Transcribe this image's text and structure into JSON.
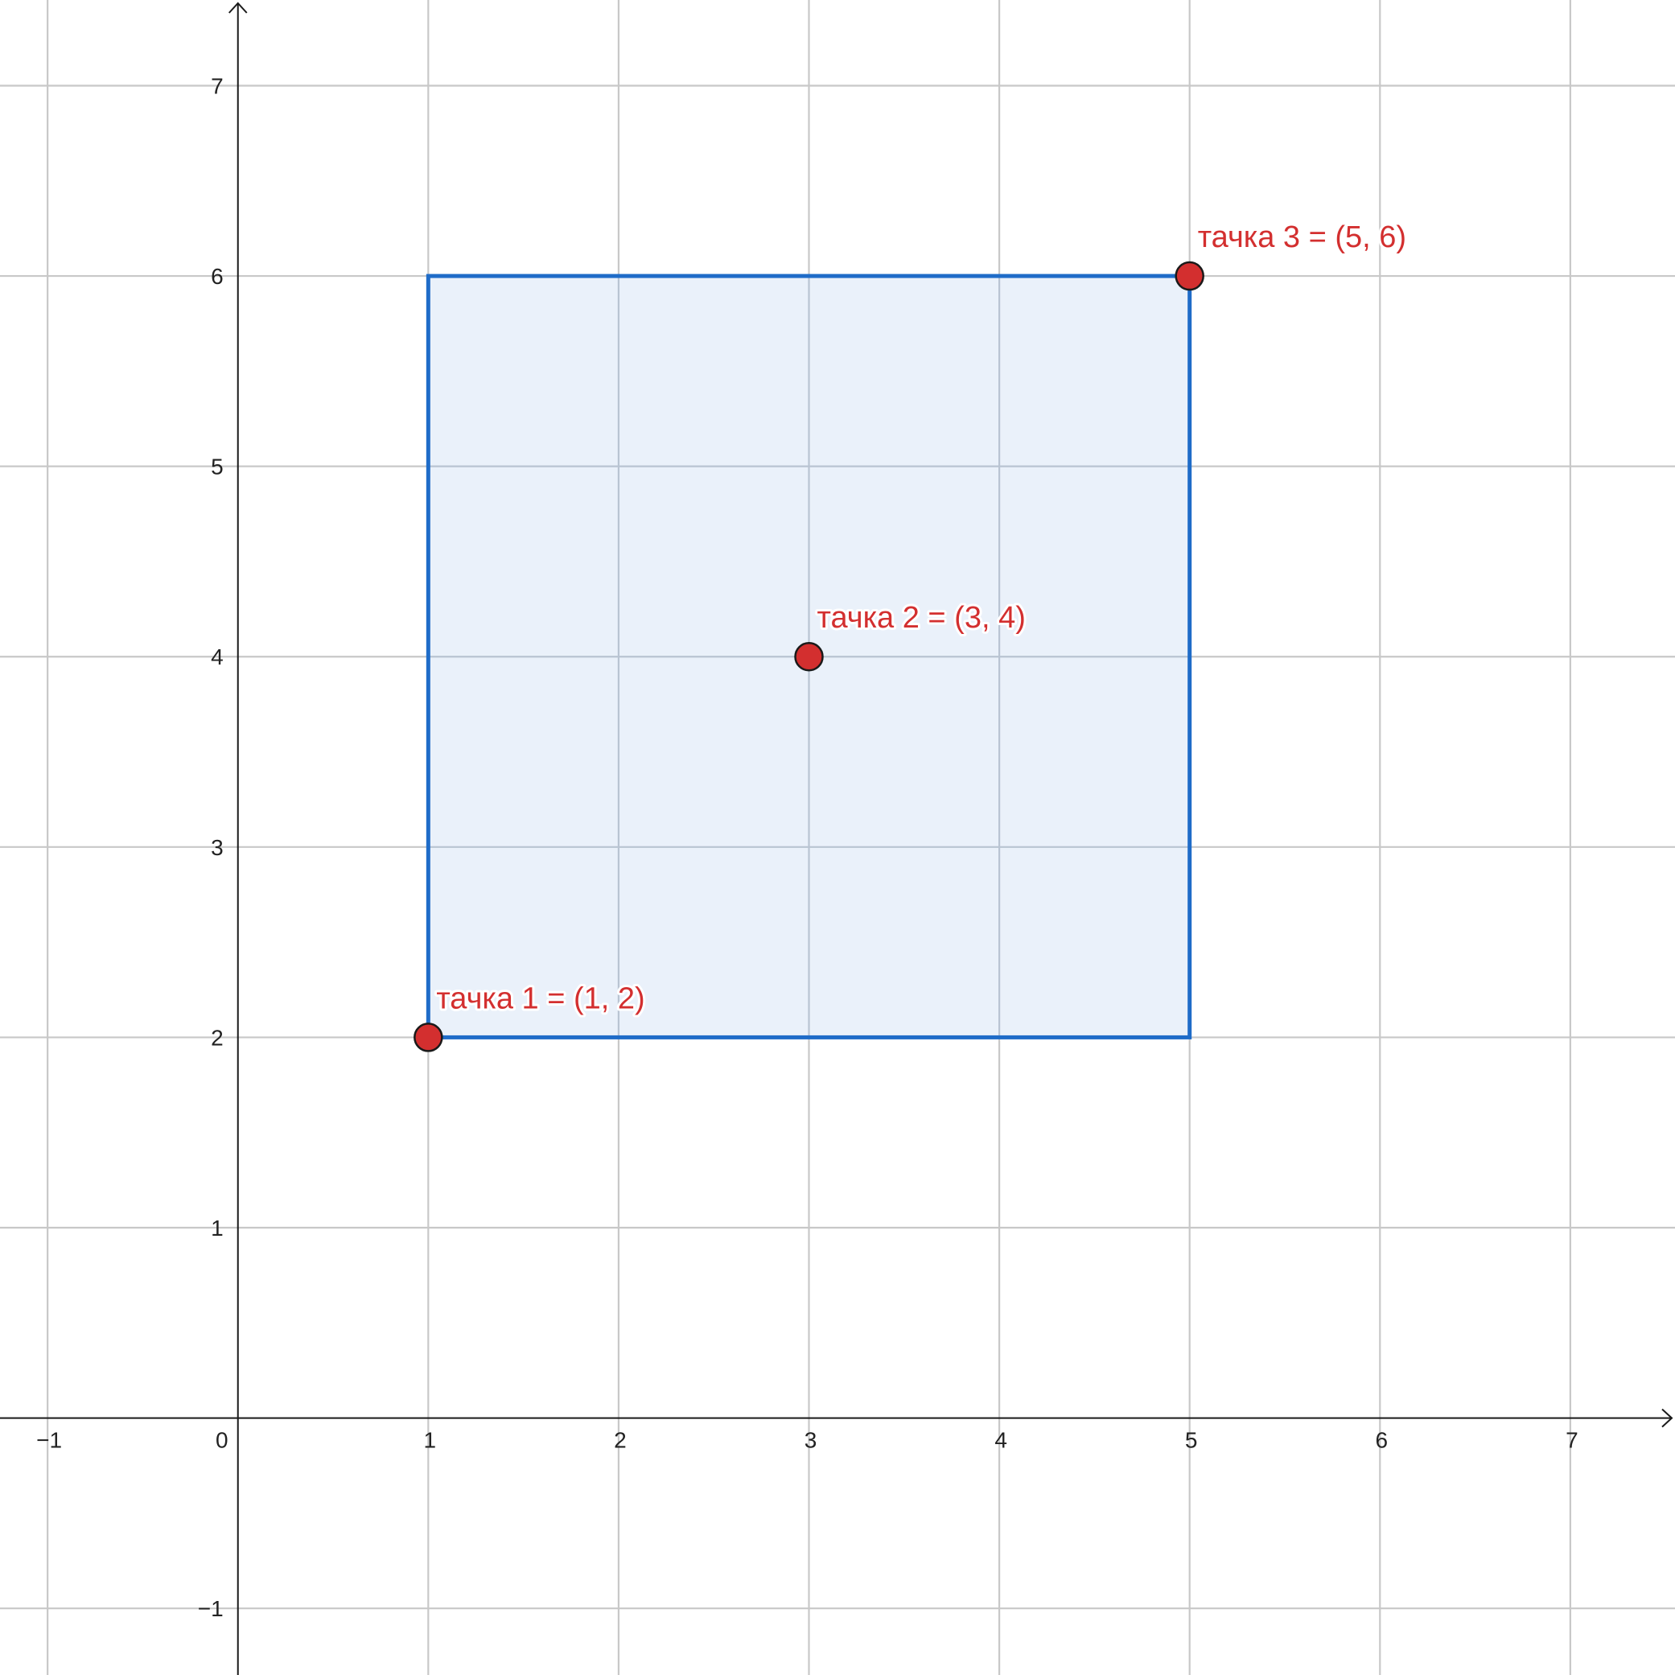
{
  "graph": {
    "x_range": [
      -1.25,
      7.55
    ],
    "y_range": [
      -1.35,
      7.45
    ],
    "x_ticks": [
      {
        "value": -1,
        "label": "−1"
      },
      {
        "value": 0,
        "label": "0"
      },
      {
        "value": 1,
        "label": "1"
      },
      {
        "value": 2,
        "label": "2"
      },
      {
        "value": 3,
        "label": "3"
      },
      {
        "value": 4,
        "label": "4"
      },
      {
        "value": 5,
        "label": "5"
      },
      {
        "value": 6,
        "label": "6"
      },
      {
        "value": 7,
        "label": "7"
      }
    ],
    "y_ticks": [
      {
        "value": -1,
        "label": "−1"
      },
      {
        "value": 1,
        "label": "1"
      },
      {
        "value": 2,
        "label": "2"
      },
      {
        "value": 3,
        "label": "3"
      },
      {
        "value": 4,
        "label": "4"
      },
      {
        "value": 5,
        "label": "5"
      },
      {
        "value": 6,
        "label": "6"
      },
      {
        "value": 7,
        "label": "7"
      }
    ],
    "rectangle": {
      "corners": [
        [
          1,
          2
        ],
        [
          5,
          6
        ]
      ],
      "stroke_color": "#1f6cc8",
      "fill_color": "#e8f0fa"
    },
    "points": [
      {
        "x": 1,
        "y": 2,
        "label": "тачка 1 = (1, 2)"
      },
      {
        "x": 3,
        "y": 4,
        "label": "тачка 2 = (3, 4)"
      },
      {
        "x": 5,
        "y": 6,
        "label": "тачка 3 = (5, 6)"
      }
    ],
    "point_color": "#d32f2f"
  }
}
